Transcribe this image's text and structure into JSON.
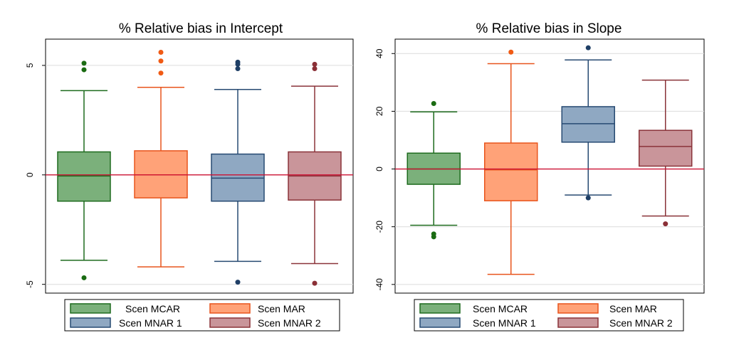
{
  "chart_data": [
    {
      "type": "box",
      "title": "% Relative bias in Intercept",
      "ylim": [
        -5.4,
        6.2
      ],
      "yticks": [
        -5,
        0,
        5
      ],
      "ytick_labels": [
        "-5",
        "0",
        "5"
      ],
      "reference_line": 0,
      "grid": true,
      "series": [
        {
          "name": "Scen MCAR",
          "min": -3.9,
          "q1": -1.2,
          "median": -0.05,
          "q3": 1.05,
          "max": 3.85,
          "outliers": [
            5.1,
            4.8,
            -4.7
          ]
        },
        {
          "name": "Scen MAR",
          "min": -4.2,
          "q1": -1.05,
          "median": 0.0,
          "q3": 1.1,
          "max": 4.0,
          "outliers": [
            5.6,
            5.2,
            4.65
          ]
        },
        {
          "name": "Scen MNAR 1",
          "min": -3.95,
          "q1": -1.2,
          "median": -0.15,
          "q3": 0.95,
          "max": 3.9,
          "outliers": [
            5.15,
            5.05,
            4.85,
            -4.9
          ]
        },
        {
          "name": "Scen MNAR 2",
          "min": -4.05,
          "q1": -1.15,
          "median": -0.05,
          "q3": 1.05,
          "max": 4.05,
          "outliers": [
            5.05,
            4.85,
            -4.95
          ]
        }
      ]
    },
    {
      "type": "box",
      "title": "% Relative bias in Slope",
      "ylim": [
        -43,
        45
      ],
      "yticks": [
        -40,
        -20,
        0,
        20,
        40
      ],
      "ytick_labels": [
        "-40",
        "-20",
        "0",
        "20",
        "40"
      ],
      "reference_line": 0,
      "grid": true,
      "series": [
        {
          "name": "Scen MCAR",
          "min": -19.5,
          "q1": -5.3,
          "median": 0.0,
          "q3": 5.5,
          "max": 19.8,
          "outliers": [
            22.7,
            -22.5,
            -23.5
          ]
        },
        {
          "name": "Scen MAR",
          "min": -36.5,
          "q1": -11.0,
          "median": -0.3,
          "q3": 9.0,
          "max": 36.5,
          "outliers": [
            40.5
          ]
        },
        {
          "name": "Scen MNAR 1",
          "min": -9.0,
          "q1": 9.3,
          "median": 15.7,
          "q3": 21.6,
          "max": 37.8,
          "outliers": [
            42.0,
            -10.0
          ]
        },
        {
          "name": "Scen MNAR 2",
          "min": -16.3,
          "q1": 1.0,
          "median": 7.8,
          "q3": 13.4,
          "max": 30.8,
          "outliers": [
            -19.0
          ]
        }
      ]
    }
  ],
  "styles": [
    {
      "fill": "#7bb07b",
      "line": "#1e6b1e",
      "dot": "#1a6b12"
    },
    {
      "fill": "#ffa278",
      "line": "#e8541c",
      "dot": "#f05a14"
    },
    {
      "fill": "#8fa8c2",
      "line": "#274a72",
      "dot": "#1f3f66"
    },
    {
      "fill": "#c9959a",
      "line": "#8a3339",
      "dot": "#8a2f36"
    }
  ],
  "reference_line_color": "#cc1133",
  "legend": {
    "items": [
      "Scen MCAR",
      "Scen MAR",
      "Scen MNAR 1",
      "Scen MNAR 2"
    ]
  }
}
